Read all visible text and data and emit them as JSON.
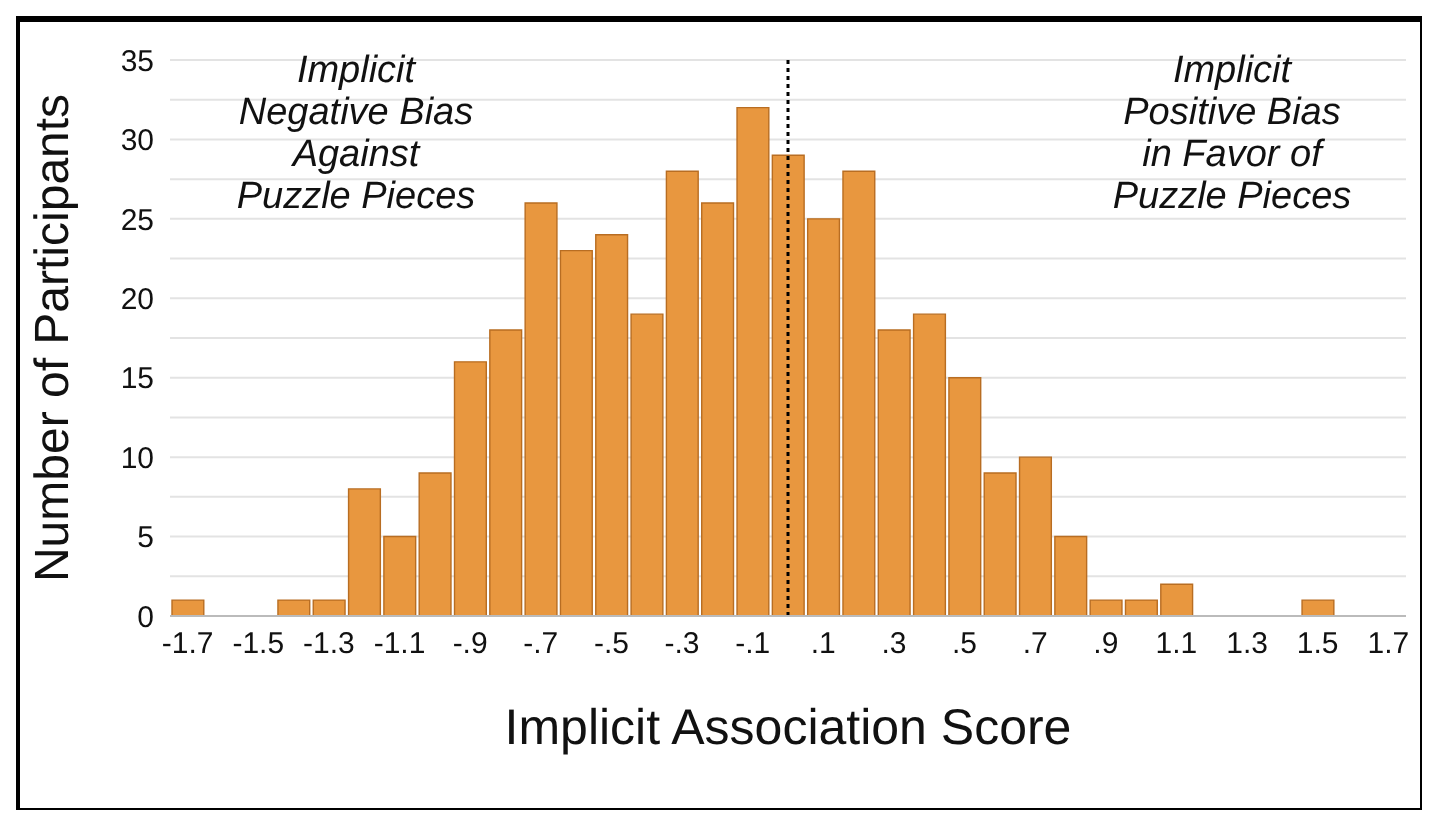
{
  "chart_data": {
    "type": "histogram",
    "xlabel": "Implicit Association Score",
    "ylabel": "Number of Participants",
    "annotations": [
      "Implicit\nNegative Bias\nAgainst\nPuzzle Pieces",
      "Implicit\nPositive Bias\nin Favor of\nPuzzle Pieces"
    ],
    "bins": [
      -1.75,
      -1.65,
      -1.55,
      -1.45,
      -1.35,
      -1.25,
      -1.15,
      -1.05,
      -0.95,
      -0.85,
      -0.75,
      -0.65,
      -0.55,
      -0.45,
      -0.35,
      -0.25,
      -0.15,
      -0.05,
      0.05,
      0.15,
      0.25,
      0.35,
      0.45,
      0.55,
      0.65,
      0.75,
      0.85,
      0.95,
      1.05,
      1.15,
      1.25,
      1.35,
      1.45,
      1.55,
      1.65,
      1.75
    ],
    "values": [
      1,
      0,
      0,
      1,
      1,
      8,
      5,
      9,
      16,
      18,
      26,
      23,
      24,
      19,
      28,
      26,
      32,
      29,
      25,
      28,
      18,
      19,
      15,
      9,
      10,
      5,
      1,
      1,
      2,
      0,
      0,
      0,
      1,
      0,
      0
    ],
    "color": "#e8973f",
    "xlim": [
      -1.75,
      1.75
    ],
    "xticks": [
      -1.7,
      -1.5,
      -1.3,
      -1.1,
      {
        "value": -0.9,
        "label": "-.9"
      },
      {
        "value": -0.7,
        "label": "-.7"
      },
      {
        "value": -0.5,
        "label": "-.5"
      },
      {
        "value": -0.3,
        "label": "-.3"
      },
      {
        "value": -0.1,
        "label": "-.1"
      },
      {
        "value": 0.1,
        "label": ".1"
      },
      {
        "value": 0.3,
        "label": ".3"
      },
      {
        "value": 0.5,
        "label": ".5"
      },
      {
        "value": 0.7,
        "label": ".7"
      },
      {
        "value": 0.9,
        "label": ".9"
      },
      1.1,
      1.3,
      1.5,
      1.7
    ],
    "ylim": [
      0,
      35
    ],
    "yticks": [
      0,
      {
        "value": 2.5,
        "label": null
      },
      5,
      {
        "value": 7.5,
        "label": null
      },
      10,
      {
        "value": 12.5,
        "label": null
      },
      15,
      {
        "value": 17.5,
        "label": null
      },
      20,
      {
        "value": 22.5,
        "label": null
      },
      25,
      {
        "value": 27.5,
        "label": null
      },
      30,
      {
        "value": 32.5,
        "label": null
      },
      35
    ],
    "grid": "y",
    "ref_lines": [
      {
        "axis": "x",
        "value": 0,
        "color": "#000000",
        "line_style": "dotted"
      }
    ]
  }
}
